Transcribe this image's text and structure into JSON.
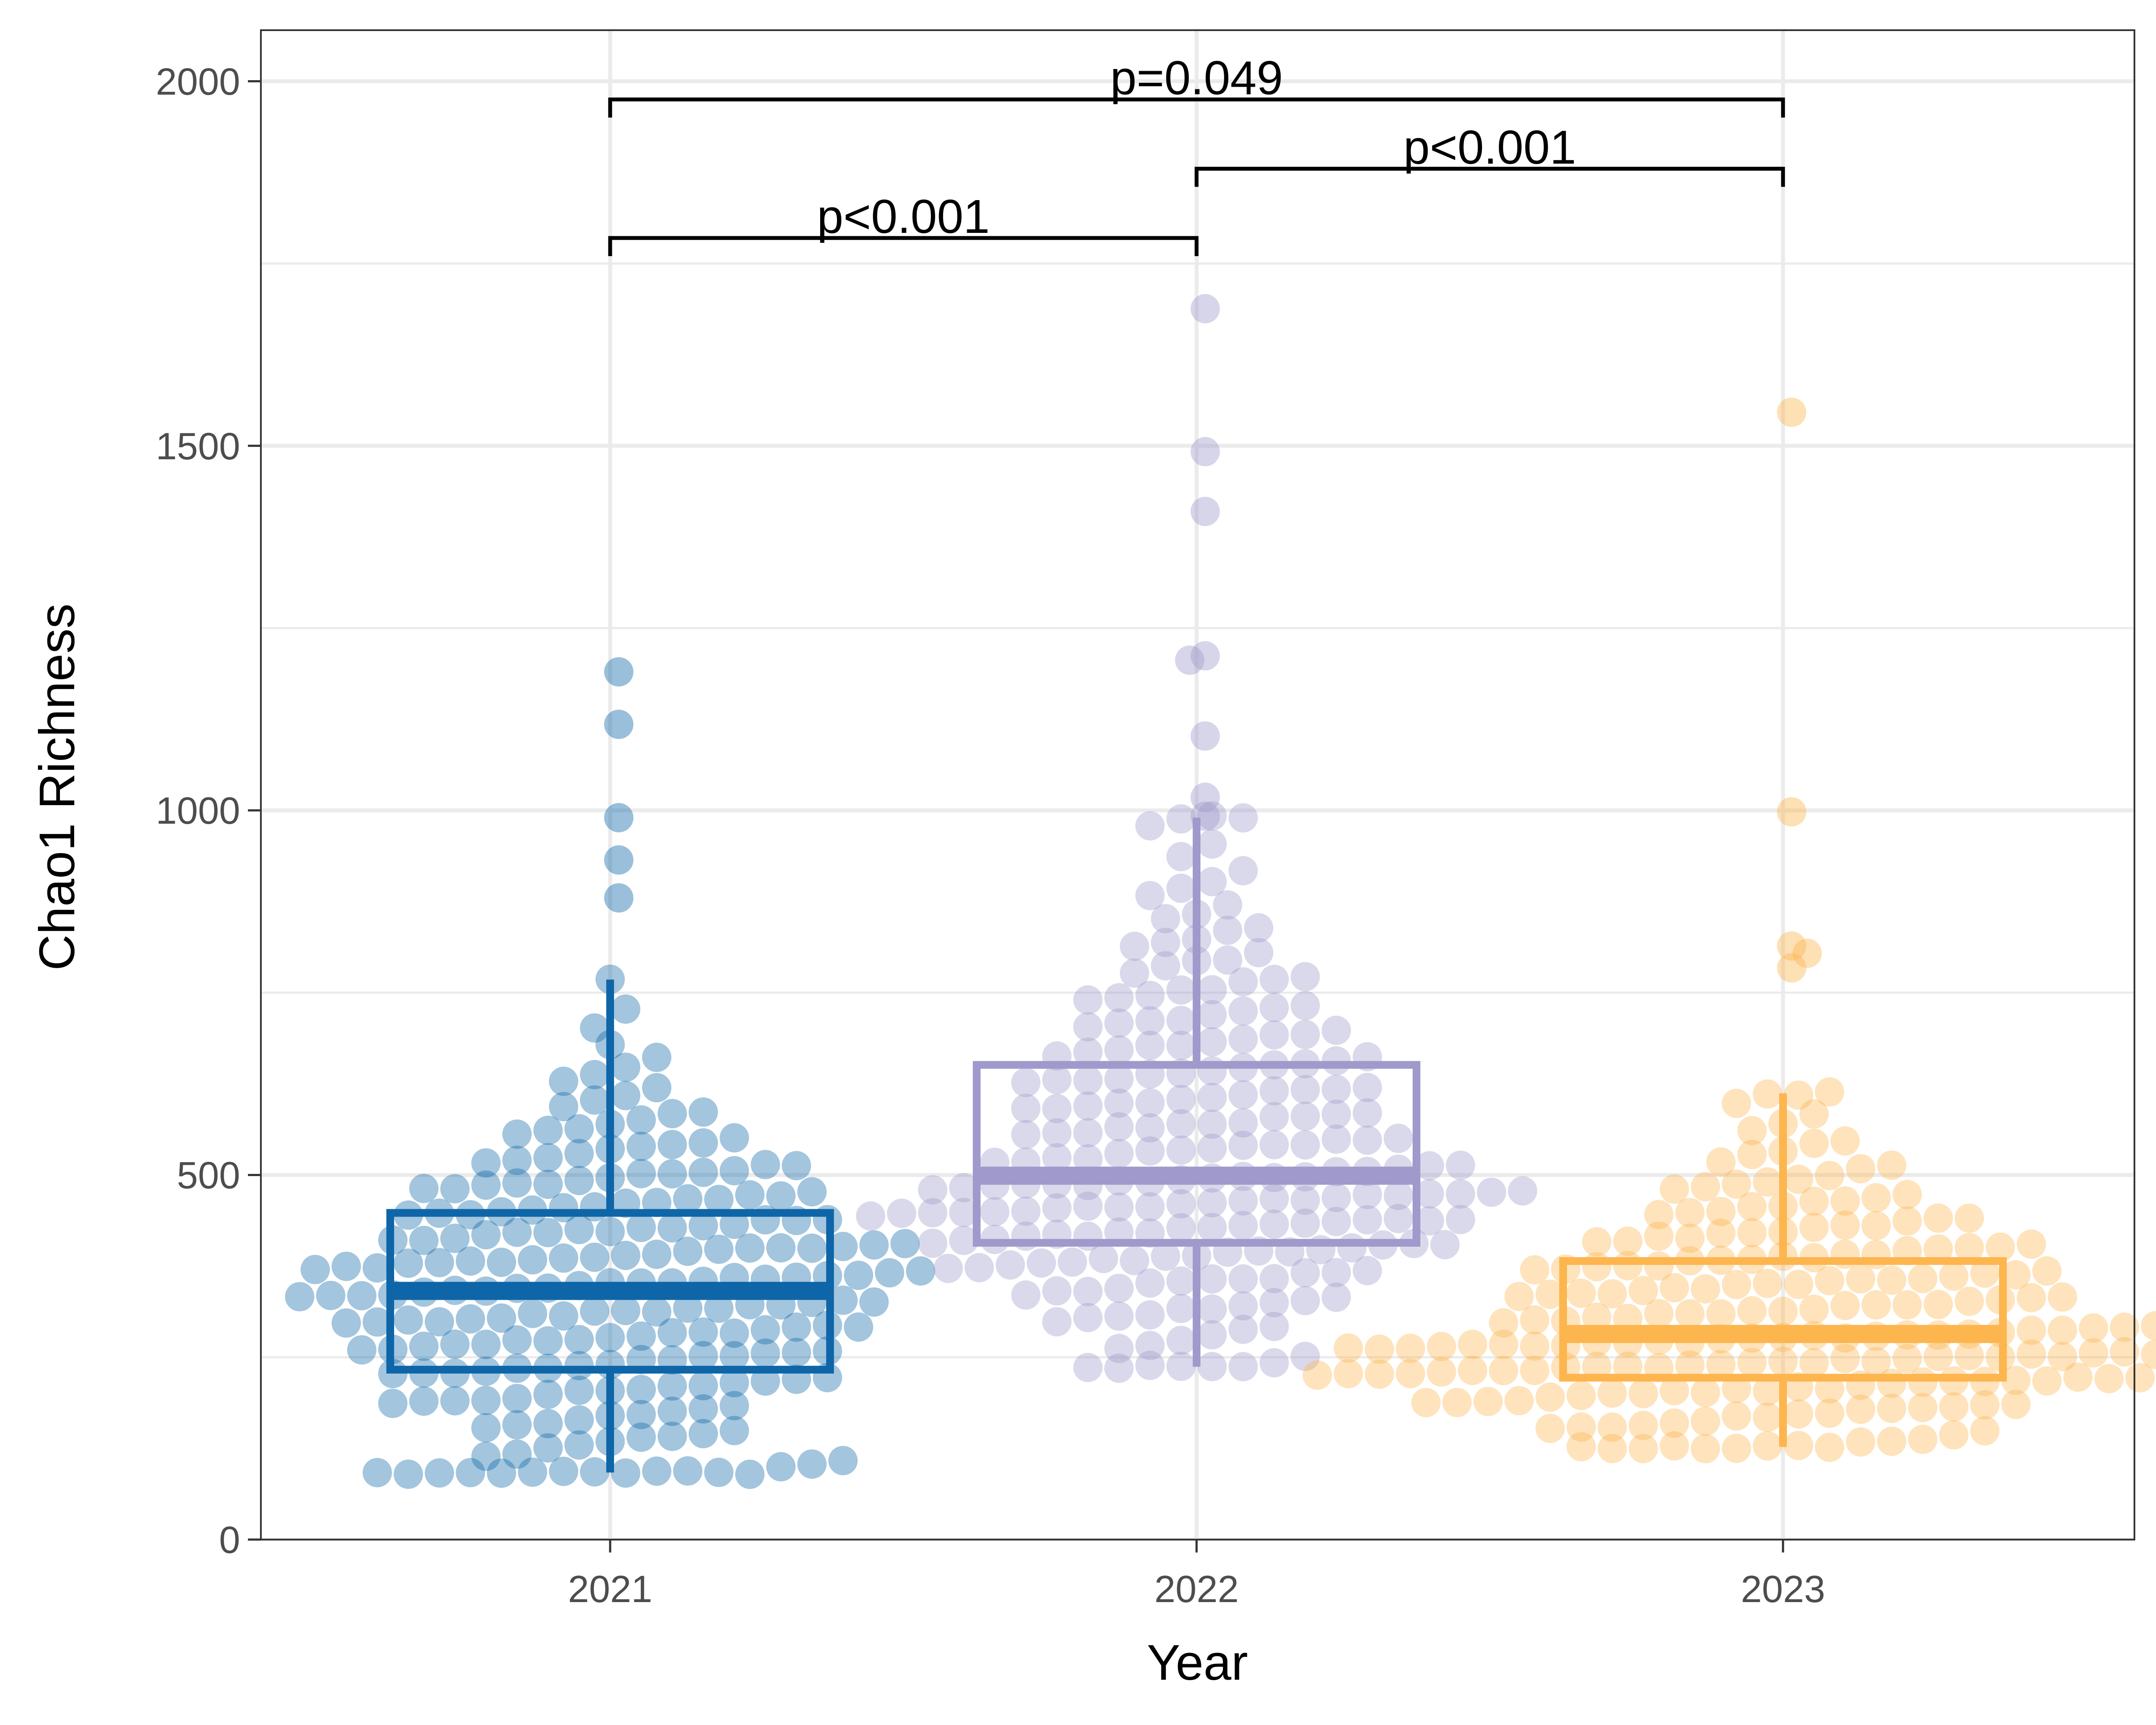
{
  "chart_data": {
    "type": "scatter",
    "subtype": "box-plot-with-beeswarm",
    "title": "",
    "xlabel": "Year",
    "ylabel": "Chao1 Richness",
    "categories": [
      "2021",
      "2022",
      "2023"
    ],
    "ylim": [
      0,
      2070
    ],
    "yticks": [
      0,
      500,
      1000,
      1500,
      2000
    ],
    "yticks_labels": [
      "0",
      "500",
      "1000",
      "1500",
      "2000"
    ],
    "grid": true,
    "legend": "none",
    "boxes": [
      {
        "category": "2021",
        "color": "#0E66A8",
        "whisker_low": 92,
        "q1": 233,
        "median": 341,
        "q3": 448,
        "whisker_high": 768
      },
      {
        "category": "2022",
        "color": "#9F9ACB",
        "whisker_low": 237,
        "q1": 407,
        "median": 499,
        "q3": 651,
        "whisker_high": 990
      },
      {
        "category": "2023",
        "color": "#FDB54E",
        "whisker_low": 127,
        "q1": 222,
        "median": 282,
        "q3": 382,
        "whisker_high": 612
      }
    ],
    "outliers": [
      {
        "category": "2021",
        "values": [
          1190,
          1118,
          990,
          932,
          880
        ]
      },
      {
        "category": "2022",
        "values": [
          1688,
          1492,
          1410,
          1212,
          1206,
          1102,
          1018,
          992
        ]
      },
      {
        "category": "2023",
        "values": [
          1546,
          998,
          814,
          804,
          784
        ]
      }
    ],
    "points_per_group": 210,
    "comparisons": [
      {
        "group1": "2021",
        "group2": "2022",
        "label": "p<0.001",
        "y": 1785
      },
      {
        "group1": "2022",
        "group2": "2023",
        "label": "p<0.001",
        "y": 1880
      },
      {
        "group1": "2021",
        "group2": "2023",
        "label": "p=0.049",
        "y": 1975
      }
    ]
  }
}
